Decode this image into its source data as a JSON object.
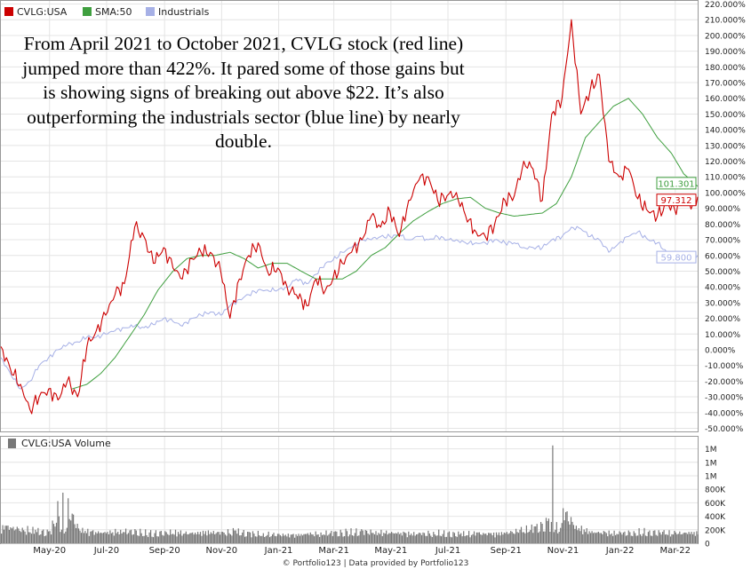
{
  "annotation": "From April 2021 to October 2021, CVLG stock (red line) jumped more than 422%. It pared some of those gains but is showing signs of breaking out above $22. It’s also outperforming the industrials sector (blue line) by nearly double.",
  "credit": "© Portfolio123 | Data provided by Portfolio123",
  "colors": {
    "cvlg": "#cc0000",
    "sma": "#3f9f3f",
    "industrials": "#a6b0e6",
    "volume": "#777777",
    "grid": "#e4e4e4",
    "frame": "#999999"
  },
  "chart_data": [
    {
      "type": "line",
      "legend_position": "top-left",
      "grid": true,
      "x_tick_labels": [
        "May-20",
        "Jul-20",
        "Sep-20",
        "Nov-20",
        "Jan-21",
        "Mar-21",
        "May-21",
        "Jul-21",
        "Sep-21",
        "Nov-21",
        "Jan-22",
        "Mar-22"
      ],
      "x_tick_dates": [
        "2020-05-01",
        "2020-07-01",
        "2020-09-01",
        "2020-11-01",
        "2021-01-01",
        "2021-03-01",
        "2021-05-01",
        "2021-07-01",
        "2021-09-01",
        "2021-11-01",
        "2022-01-01",
        "2022-03-01"
      ],
      "x_range": [
        "2020-03-10",
        "2022-03-25"
      ],
      "y_ticks": [
        220,
        210,
        200,
        190,
        180,
        170,
        160,
        150,
        140,
        130,
        120,
        110,
        100,
        90,
        80,
        70,
        60,
        50,
        40,
        30,
        20,
        10,
        0,
        -10,
        -20,
        -30,
        -40,
        -50
      ],
      "y_tick_labels": [
        "220.000%",
        "210.000%",
        "200.000%",
        "190.000%",
        "180.000%",
        "170.000%",
        "160.000%",
        "150.000%",
        "140.000%",
        "130.000%",
        "120.000%",
        "110.000%",
        "100.000%",
        "90.000%",
        "80.000%",
        "70.000%",
        "60.000%",
        "50.000%",
        "40.000%",
        "30.000%",
        "20.000%",
        "10.000%",
        "0.000%",
        "-10.000%",
        "-20.000%",
        "-30.000%",
        "-40.000%",
        "-50.000%"
      ],
      "ylim": [
        -52,
        222
      ],
      "y_unit": "%",
      "series": [
        {
          "name": "CVLG:USA",
          "color": "#cc0000",
          "end_label": "97.312",
          "x": [
            "2020-03-10",
            "2020-03-20",
            "2020-03-31",
            "2020-04-10",
            "2020-04-20",
            "2020-04-30",
            "2020-05-10",
            "2020-05-20",
            "2020-05-31",
            "2020-06-10",
            "2020-06-20",
            "2020-06-30",
            "2020-07-10",
            "2020-07-20",
            "2020-07-31",
            "2020-08-10",
            "2020-08-20",
            "2020-08-31",
            "2020-09-10",
            "2020-09-20",
            "2020-09-30",
            "2020-10-10",
            "2020-10-20",
            "2020-10-31",
            "2020-11-10",
            "2020-11-20",
            "2020-11-30",
            "2020-12-10",
            "2020-12-20",
            "2020-12-31",
            "2021-01-10",
            "2021-01-20",
            "2021-01-31",
            "2021-02-10",
            "2021-02-20",
            "2021-02-28",
            "2021-03-10",
            "2021-03-20",
            "2021-03-31",
            "2021-04-10",
            "2021-04-20",
            "2021-04-30",
            "2021-05-10",
            "2021-05-20",
            "2021-05-31",
            "2021-06-10",
            "2021-06-20",
            "2021-06-30",
            "2021-07-10",
            "2021-07-20",
            "2021-07-31",
            "2021-08-10",
            "2021-08-20",
            "2021-08-31",
            "2021-09-10",
            "2021-09-20",
            "2021-09-30",
            "2021-10-10",
            "2021-10-20",
            "2021-10-31",
            "2021-11-10",
            "2021-11-20",
            "2021-11-30",
            "2021-12-10",
            "2021-12-20",
            "2021-12-31",
            "2022-01-10",
            "2022-01-20",
            "2022-01-31",
            "2022-02-10",
            "2022-02-20",
            "2022-02-28",
            "2022-03-10",
            "2022-03-20",
            "2022-03-25"
          ],
          "values": [
            2,
            -12,
            -22,
            -38,
            -30,
            -25,
            -32,
            -20,
            -30,
            2,
            12,
            22,
            35,
            42,
            78,
            72,
            55,
            65,
            52,
            45,
            58,
            62,
            62,
            50,
            20,
            45,
            60,
            68,
            50,
            52,
            40,
            35,
            28,
            45,
            38,
            45,
            55,
            62,
            70,
            85,
            78,
            88,
            72,
            95,
            108,
            110,
            95,
            98,
            100,
            85,
            75,
            72,
            80,
            95,
            98,
            120,
            115,
            95,
            150,
            160,
            210,
            150,
            165,
            175,
            120,
            110,
            115,
            96,
            88,
            85,
            93,
            90,
            95,
            93,
            97.3
          ]
        },
        {
          "name": "SMA:50",
          "color": "#3f9f3f",
          "end_label": "101.301",
          "x": [
            "2020-05-25",
            "2020-06-10",
            "2020-06-25",
            "2020-07-10",
            "2020-07-25",
            "2020-08-10",
            "2020-08-25",
            "2020-09-10",
            "2020-09-25",
            "2020-10-10",
            "2020-10-25",
            "2020-11-10",
            "2020-11-25",
            "2020-12-10",
            "2020-12-25",
            "2021-01-10",
            "2021-01-25",
            "2021-02-10",
            "2021-02-25",
            "2021-03-10",
            "2021-03-25",
            "2021-04-10",
            "2021-04-25",
            "2021-05-10",
            "2021-05-25",
            "2021-06-10",
            "2021-06-25",
            "2021-07-10",
            "2021-07-25",
            "2021-08-10",
            "2021-08-25",
            "2021-09-10",
            "2021-09-25",
            "2021-10-10",
            "2021-10-25",
            "2021-11-10",
            "2021-11-25",
            "2021-12-10",
            "2021-12-25",
            "2022-01-10",
            "2022-01-25",
            "2022-02-10",
            "2022-02-25",
            "2022-03-10",
            "2022-03-25"
          ],
          "values": [
            -25,
            -22,
            -15,
            -5,
            8,
            22,
            38,
            50,
            58,
            60,
            60,
            62,
            58,
            52,
            55,
            55,
            50,
            45,
            45,
            45,
            50,
            60,
            65,
            74,
            82,
            88,
            93,
            96,
            97,
            90,
            87,
            85,
            86,
            87,
            93,
            110,
            135,
            145,
            155,
            160,
            150,
            135,
            125,
            112,
            104
          ]
        },
        {
          "name": "Industrials",
          "color": "#a6b0e6",
          "end_label": "59.800",
          "x": [
            "2020-03-10",
            "2020-03-20",
            "2020-03-31",
            "2020-04-10",
            "2020-04-20",
            "2020-04-30",
            "2020-05-10",
            "2020-05-20",
            "2020-05-31",
            "2020-06-10",
            "2020-06-20",
            "2020-06-30",
            "2020-07-10",
            "2020-07-20",
            "2020-07-31",
            "2020-08-10",
            "2020-08-20",
            "2020-08-31",
            "2020-09-10",
            "2020-09-20",
            "2020-09-30",
            "2020-10-10",
            "2020-10-20",
            "2020-10-31",
            "2020-11-10",
            "2020-11-20",
            "2020-11-30",
            "2020-12-10",
            "2020-12-20",
            "2020-12-31",
            "2021-01-10",
            "2021-01-20",
            "2021-01-31",
            "2021-02-10",
            "2021-02-20",
            "2021-02-28",
            "2021-03-10",
            "2021-03-20",
            "2021-03-31",
            "2021-04-10",
            "2021-04-20",
            "2021-04-30",
            "2021-05-10",
            "2021-05-20",
            "2021-05-31",
            "2021-06-10",
            "2021-06-20",
            "2021-06-30",
            "2021-07-10",
            "2021-07-20",
            "2021-07-31",
            "2021-08-10",
            "2021-08-20",
            "2021-08-31",
            "2021-09-10",
            "2021-09-20",
            "2021-09-30",
            "2021-10-10",
            "2021-10-20",
            "2021-10-31",
            "2021-11-10",
            "2021-11-20",
            "2021-11-30",
            "2021-12-10",
            "2021-12-20",
            "2021-12-31",
            "2022-01-10",
            "2022-01-20",
            "2022-01-31",
            "2022-02-10",
            "2022-02-20",
            "2022-02-28",
            "2022-03-10",
            "2022-03-20",
            "2022-03-25"
          ],
          "values": [
            -5,
            -15,
            -25,
            -20,
            -10,
            -5,
            0,
            3,
            5,
            8,
            8,
            10,
            12,
            14,
            15,
            14,
            16,
            20,
            18,
            15,
            20,
            22,
            24,
            22,
            28,
            32,
            35,
            38,
            38,
            38,
            40,
            45,
            42,
            48,
            55,
            57,
            62,
            65,
            70,
            70,
            72,
            72,
            73,
            70,
            72,
            70,
            72,
            70,
            70,
            68,
            68,
            68,
            70,
            68,
            68,
            65,
            65,
            65,
            70,
            72,
            78,
            77,
            72,
            70,
            62,
            68,
            72,
            75,
            70,
            68,
            62,
            60,
            62,
            60,
            59.8
          ]
        }
      ]
    },
    {
      "type": "bar",
      "legend_position": "top-left",
      "series_name": "CVLG:USA Volume",
      "color": "#777777",
      "y_ticks": [
        0,
        200000,
        400000,
        600000,
        800000,
        1000000,
        1200000,
        1400000
      ],
      "y_tick_labels": [
        "0",
        "200K",
        "400K",
        "600K",
        "800K",
        "1M",
        "1M",
        "1M"
      ],
      "ylim": [
        0,
        1500000
      ],
      "x": [
        "2020-03-15",
        "2020-04-01",
        "2020-04-15",
        "2020-05-01",
        "2020-05-15",
        "2020-06-01",
        "2020-06-15",
        "2020-07-01",
        "2020-07-15",
        "2020-08-01",
        "2020-08-15",
        "2020-09-01",
        "2020-09-15",
        "2020-10-01",
        "2020-10-15",
        "2020-11-01",
        "2020-11-15",
        "2020-12-01",
        "2020-12-15",
        "2021-01-01",
        "2021-01-15",
        "2021-02-01",
        "2021-02-15",
        "2021-03-01",
        "2021-03-15",
        "2021-04-01",
        "2021-04-15",
        "2021-05-01",
        "2021-05-15",
        "2021-06-01",
        "2021-06-15",
        "2021-07-01",
        "2021-07-15",
        "2021-08-01",
        "2021-08-15",
        "2021-09-01",
        "2021-09-15",
        "2021-10-01",
        "2021-10-15",
        "2021-10-20",
        "2021-11-01",
        "2021-11-15",
        "2021-12-01",
        "2021-12-15",
        "2022-01-01",
        "2022-01-15",
        "2022-02-01",
        "2022-02-15",
        "2022-03-01",
        "2022-03-15"
      ],
      "values": [
        260000,
        230000,
        200000,
        180000,
        750000,
        220000,
        180000,
        170000,
        200000,
        190000,
        160000,
        180000,
        170000,
        160000,
        180000,
        170000,
        190000,
        160000,
        150000,
        140000,
        130000,
        150000,
        160000,
        170000,
        180000,
        190000,
        180000,
        170000,
        160000,
        150000,
        170000,
        160000,
        150000,
        160000,
        150000,
        170000,
        200000,
        250000,
        330000,
        1450000,
        520000,
        260000,
        180000,
        170000,
        160000,
        180000,
        190000,
        170000,
        160000,
        170000
      ]
    }
  ]
}
